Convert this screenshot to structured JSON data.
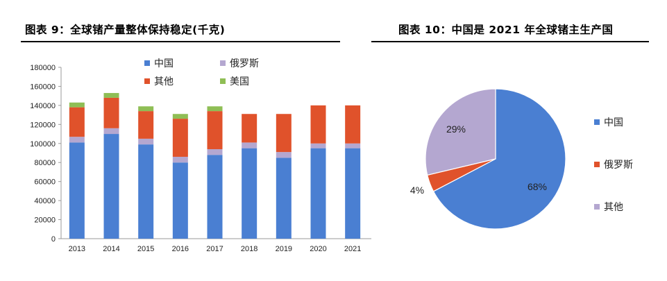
{
  "figure_titles": {
    "fig9": "图表 9：全球锗产量整体保持稳定(千克)",
    "fig10": "图表 10：中国是 2021 年全球锗主生产国"
  },
  "chart_data": [
    {
      "type": "bar",
      "stacked": true,
      "title": "全球锗产量整体保持稳定(千克)",
      "categories": [
        "2013",
        "2014",
        "2015",
        "2016",
        "2017",
        "2018",
        "2019",
        "2020",
        "2021"
      ],
      "series": [
        {
          "name": "中国",
          "color": "#4a7fd2",
          "values": [
            101000,
            110000,
            99000,
            80000,
            88000,
            95000,
            85000,
            95000,
            95000
          ]
        },
        {
          "name": "俄罗斯",
          "color": "#b4a7d0",
          "values": [
            6000,
            6000,
            6000,
            6000,
            6000,
            6000,
            6000,
            5000,
            5000
          ]
        },
        {
          "name": "其他",
          "color": "#e0522b",
          "values": [
            31000,
            32000,
            29000,
            40000,
            40000,
            30000,
            40000,
            40000,
            40000
          ]
        },
        {
          "name": "美国",
          "color": "#8fbe55",
          "values": [
            5000,
            5000,
            5000,
            5000,
            5000,
            0,
            0,
            0,
            0
          ]
        }
      ],
      "yticks": [
        0,
        20000,
        40000,
        60000,
        80000,
        100000,
        120000,
        140000,
        160000,
        180000
      ],
      "ylim": [
        0,
        180000
      ],
      "legend": [
        {
          "name": "中国",
          "color": "#4a7fd2"
        },
        {
          "name": "俄罗斯",
          "color": "#b4a7d0"
        },
        {
          "name": "其他",
          "color": "#e0522b"
        },
        {
          "name": "美国",
          "color": "#8fbe55"
        }
      ]
    },
    {
      "type": "pie",
      "title": "中国是 2021 年全球锗主生产国",
      "slices": [
        {
          "name": "中国",
          "value": 68,
          "label": "68%",
          "color": "#4a7fd2"
        },
        {
          "name": "俄罗斯",
          "value": 4,
          "label": "4%",
          "color": "#e0522b"
        },
        {
          "name": "其他",
          "value": 29,
          "label": "29%",
          "color": "#b4a7d0"
        }
      ],
      "legend": [
        {
          "name": "中国",
          "color": "#4a7fd2"
        },
        {
          "name": "俄罗斯",
          "color": "#e0522b"
        },
        {
          "name": "其他",
          "color": "#b4a7d0"
        }
      ]
    }
  ]
}
